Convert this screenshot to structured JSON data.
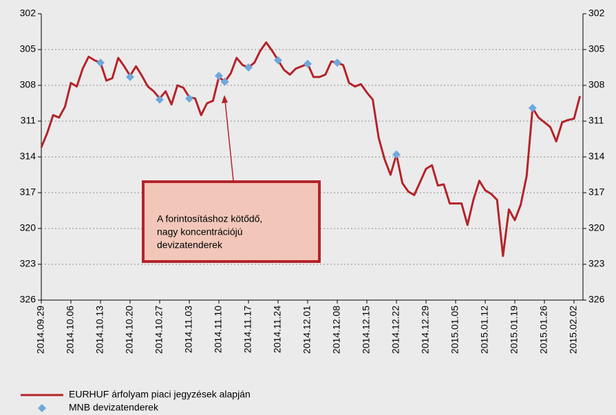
{
  "chart_data": {
    "type": "line",
    "categories": [
      "2014.09.29",
      null,
      null,
      null,
      null,
      "2014.10.06",
      null,
      null,
      null,
      null,
      "2014.10.13",
      null,
      null,
      null,
      null,
      "2014.10.20",
      null,
      null,
      null,
      null,
      "2014.10.27",
      null,
      null,
      null,
      null,
      "2014.11.03",
      null,
      null,
      null,
      null,
      "2014.11.10",
      null,
      null,
      null,
      null,
      "2014.11.17",
      null,
      null,
      null,
      null,
      "2014.11.24",
      null,
      null,
      null,
      null,
      "2014.12.01",
      null,
      null,
      null,
      null,
      "2014.12.08",
      null,
      null,
      null,
      null,
      "2014.12.15",
      null,
      null,
      null,
      null,
      "2014.12.22",
      null,
      null,
      null,
      null,
      "2014.12.29",
      null,
      null,
      null,
      null,
      "2015.01.05",
      null,
      null,
      null,
      null,
      "2015.01.12",
      null,
      null,
      null,
      null,
      "2015.01.19",
      null,
      null,
      null,
      null,
      "2015.01.26",
      null,
      null,
      null,
      null,
      "2015.02.02",
      null
    ],
    "series": [
      {
        "name": "EURHUF árfolyam piaci jegyzések alapján",
        "color": "#b4232a",
        "style": "line",
        "values": [
          313.2,
          312.0,
          310.5,
          310.7,
          309.8,
          307.8,
          308.1,
          306.6,
          305.6,
          305.9,
          306.1,
          307.6,
          307.4,
          305.7,
          306.4,
          307.2,
          306.4,
          307.2,
          308.1,
          308.5,
          309.1,
          308.5,
          309.6,
          308.0,
          308.2,
          309.0,
          309.1,
          310.5,
          309.5,
          309.3,
          307.3,
          307.7,
          307.0,
          305.7,
          306.3,
          306.5,
          306.1,
          305.1,
          304.4,
          305.1,
          305.9,
          306.7,
          307.1,
          306.6,
          306.4,
          306.2,
          307.3,
          307.3,
          307.1,
          306.0,
          306.1,
          306.3,
          307.8,
          308.1,
          307.9,
          308.6,
          309.2,
          312.4,
          314.2,
          315.5,
          313.8,
          316.2,
          316.9,
          317.2,
          316.1,
          315.0,
          314.7,
          316.4,
          316.3,
          317.9,
          317.9,
          317.9,
          319.7,
          317.6,
          316.0,
          316.8,
          317.1,
          317.6,
          322.3,
          318.4,
          319.3,
          318.0,
          315.6,
          309.9,
          310.7,
          311.1,
          311.5,
          312.7,
          311.1,
          310.9,
          310.8,
          308.9
        ]
      },
      {
        "name": "MNB devizatenderek",
        "color": "#6fa8dc",
        "style": "markers",
        "values": [
          null,
          null,
          null,
          null,
          null,
          null,
          null,
          null,
          null,
          null,
          306.1,
          null,
          null,
          null,
          null,
          307.3,
          null,
          null,
          null,
          null,
          309.2,
          null,
          null,
          null,
          null,
          309.1,
          null,
          null,
          null,
          null,
          307.2,
          307.7,
          null,
          null,
          null,
          306.5,
          null,
          null,
          null,
          null,
          305.9,
          null,
          null,
          null,
          null,
          306.2,
          null,
          null,
          null,
          null,
          306.1,
          null,
          null,
          null,
          null,
          null,
          null,
          null,
          null,
          null,
          313.8,
          null,
          null,
          null,
          null,
          null,
          null,
          null,
          null,
          null,
          null,
          null,
          null,
          null,
          null,
          null,
          null,
          null,
          null,
          null,
          null,
          null,
          null,
          309.9,
          null,
          null,
          null,
          null,
          null,
          null,
          null,
          null
        ]
      }
    ],
    "ylim": [
      326,
      302
    ],
    "yticks": [
      302,
      305,
      308,
      311,
      314,
      317,
      320,
      323,
      326
    ],
    "y2lim": [
      326,
      302
    ],
    "y2ticks": [
      302,
      305,
      308,
      311,
      314,
      317,
      320,
      323,
      326
    ],
    "grid": true,
    "legend": "bottom",
    "annotation": {
      "lines": [
        "A forintosításhoz kötődő,",
        "nagy koncentrációjú",
        "devizatenderek"
      ]
    }
  }
}
